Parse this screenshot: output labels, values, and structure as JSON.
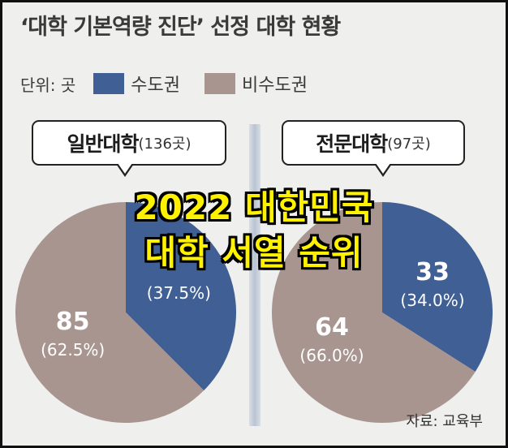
{
  "title": "‘대학 기본역량 진단’ 선정 대학 현황",
  "legend": {
    "unit": "단위: 곳",
    "items": [
      {
        "label": "수도권",
        "color": "#3f5f95"
      },
      {
        "label": "비수도권",
        "color": "#a89590"
      }
    ]
  },
  "overlay": {
    "line1": "2022 대한민국",
    "line2": "대학 서열 순위"
  },
  "source": "자료: 교육부",
  "chart_data": [
    {
      "type": "pie",
      "title": "일반대학",
      "count_label": "(136곳)",
      "slices": [
        {
          "name": "수도권",
          "value": 51,
          "percent_label": "(37.5%)",
          "color": "#3f5f95"
        },
        {
          "name": "비수도권",
          "value": 85,
          "value_label": "85",
          "percent_label": "(62.5%)",
          "color": "#a89590"
        }
      ]
    },
    {
      "type": "pie",
      "title": "전문대학",
      "count_label": "(97곳)",
      "slices": [
        {
          "name": "수도권",
          "value": 33,
          "value_label": "33",
          "percent_label": "(34.0%)",
          "color": "#3f5f95"
        },
        {
          "name": "비수도권",
          "value": 64,
          "value_label": "64",
          "percent_label": "(66.0%)",
          "color": "#a89590"
        }
      ]
    }
  ]
}
